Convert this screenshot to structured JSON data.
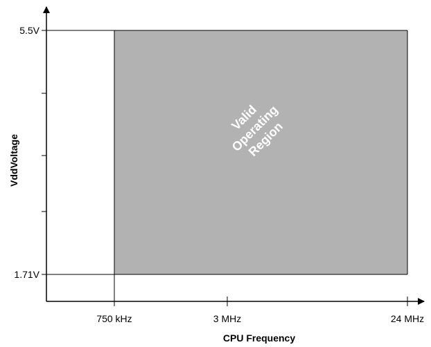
{
  "chart_data": {
    "type": "area",
    "xlabel": "CPU  Frequency",
    "ylabel": "VddVoltage",
    "x_ticks": [
      {
        "label": "750 kHz",
        "value": 0.75
      },
      {
        "label": "3 MHz",
        "value": 3
      },
      {
        "label": "24 MHz",
        "value": 24
      }
    ],
    "y_ticks": [
      {
        "label": "1.71V",
        "value": 1.71
      },
      {
        "label": "5.5V",
        "value": 5.5
      }
    ],
    "region": {
      "x_min": 0.75,
      "x_max": 24,
      "y_min": 1.71,
      "y_max": 5.5,
      "lines": [
        "Valid",
        "Operating",
        "Region"
      ],
      "fill_color": "#b2b2b2"
    },
    "grid": false,
    "legend": "none"
  }
}
